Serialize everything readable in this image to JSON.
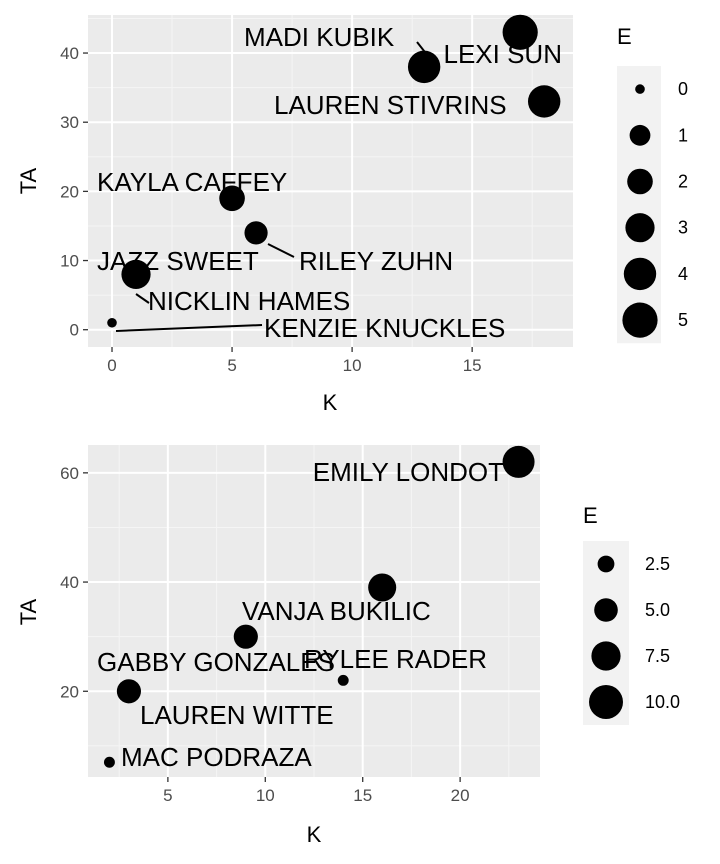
{
  "chart_data": [
    {
      "type": "scatter",
      "xlabel": "K",
      "ylabel": "TA",
      "xlim": [
        -1,
        19.2
      ],
      "ylim": [
        -2.5,
        45.5
      ],
      "x_ticks": [
        0,
        5,
        10,
        15
      ],
      "y_ticks": [
        0,
        10,
        20,
        30,
        40
      ],
      "size_legend": {
        "title": "E",
        "values": [
          0,
          1,
          2,
          3,
          4,
          5
        ],
        "labels": [
          "0",
          "1",
          "2",
          "3",
          "4",
          "5"
        ]
      },
      "legend_position": "right",
      "grid": true,
      "points": [
        {
          "name": "MADI KUBIK",
          "x": 13,
          "y": 38,
          "size": 4
        },
        {
          "name": "LEXI SUN",
          "x": 17,
          "y": 43,
          "size": 5
        },
        {
          "name": "LAUREN STIVRINS",
          "x": 18,
          "y": 33,
          "size": 4
        },
        {
          "name": "KAYLA CAFFEY",
          "x": 5,
          "y": 19,
          "size": 2
        },
        {
          "name": "RILEY ZUHN",
          "x": 6,
          "y": 14,
          "size": 1.5
        },
        {
          "name": "JAZZ SWEET",
          "x": 1,
          "y": 8,
          "size": 3
        },
        {
          "name": "NICKLIN HAMES",
          "x": 1,
          "y": 7,
          "size": 0
        },
        {
          "name": "KENZIE KNUCKLES",
          "x": 0,
          "y": 1,
          "size": 0
        }
      ]
    },
    {
      "type": "scatter",
      "xlabel": "K",
      "ylabel": "TA",
      "xlim": [
        0.9,
        24.1
      ],
      "ylim": [
        4.3,
        65.1
      ],
      "x_ticks": [
        5,
        10,
        15,
        20
      ],
      "y_ticks": [
        20,
        40,
        60
      ],
      "size_legend": {
        "title": "E",
        "values": [
          2.5,
          5,
          7.5,
          10
        ],
        "labels": [
          "2.5",
          "5.0",
          "7.5",
          "10.0"
        ]
      },
      "legend_position": "right",
      "grid": true,
      "points": [
        {
          "name": "EMILY LONDOT",
          "x": 23,
          "y": 62,
          "size": 11
        },
        {
          "name": "RYLEE RADER",
          "x": 16,
          "y": 39,
          "size": 8
        },
        {
          "name": "VANJA BUKILIC",
          "x": 9,
          "y": 30,
          "size": 5.5
        },
        {
          "name": "GABBY GONZALES",
          "x": 14,
          "y": 22,
          "size": 0.5
        },
        {
          "name": "LAUREN WITTE",
          "x": 3,
          "y": 20,
          "size": 5.5
        },
        {
          "name": "MAC PODRAZA",
          "x": 2,
          "y": 7,
          "size": 0.5
        }
      ]
    }
  ]
}
